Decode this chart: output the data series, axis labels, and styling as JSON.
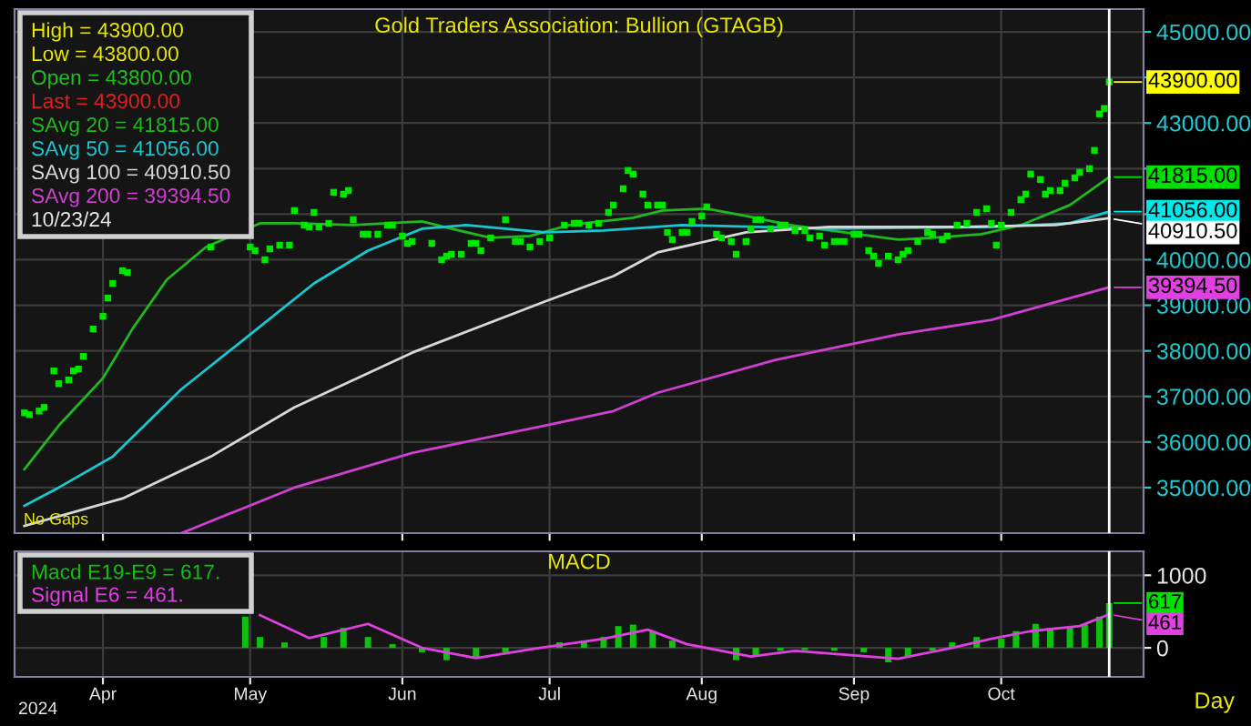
{
  "chart_data": [
    {
      "type": "scatter",
      "title": "Gold Traders Association: Bullion (GTAGB)",
      "legend": "top left",
      "grid": true,
      "tick_labels": "y",
      "xlim": [
        "2024-03-14",
        "2024-10-30"
      ],
      "ylim": [
        34000,
        45500
      ],
      "xticks": [
        {
          "value": "2024-04-01",
          "label": null
        },
        {
          "value": "2024-05-01",
          "label": null
        },
        {
          "value": "2024-06-01",
          "label": null
        },
        {
          "value": "2024-07-01",
          "label": null
        },
        {
          "value": "2024-08-01",
          "label": null
        },
        {
          "value": "2024-09-01",
          "label": null
        },
        {
          "value": "2024-10-01",
          "label": null
        }
      ],
      "yticks": [
        {
          "value": 35000,
          "label": "35000.00"
        },
        {
          "value": 36000,
          "label": "36000.00"
        },
        {
          "value": 37000,
          "label": "37000.00"
        },
        {
          "value": 38000,
          "label": "38000.00"
        },
        {
          "value": 39000,
          "label": "39000.00"
        },
        {
          "value": 40000,
          "label": "40000.00"
        },
        {
          "value": 41000,
          "label": null
        },
        {
          "value": 42000,
          "label": null
        },
        {
          "value": 43000,
          "label": "43000.00"
        },
        {
          "value": 44000,
          "label": null
        },
        {
          "value": 45000,
          "label": "45000.00"
        }
      ],
      "annotations": [
        "High = 43900.00",
        "Low = 43800.00",
        "Open = 43800.00",
        "Last = 43900.00",
        "10/23/24",
        "No Gaps",
        {
          "text": "43900.00",
          "x": "2024-10-23",
          "y": 43900
        },
        {
          "text": "41815.00",
          "x": "2024-10-23",
          "y": 41815
        },
        {
          "text": "41056.00",
          "x": "2024-10-23",
          "y": 41056
        },
        {
          "text": "40910.50",
          "x": "2024-10-23",
          "y": 40910.5
        },
        {
          "text": "39394.50",
          "x": "2024-10-23",
          "y": 39394.5
        }
      ],
      "ref_lines": [
        {
          "axis": "x",
          "value": "2024-10-23",
          "color": "#ffffff"
        }
      ],
      "series": [
        {
          "marker": "square",
          "color": "#00e400",
          "x": [
            "2024-03-16",
            "2024-03-17",
            "2024-03-19",
            "2024-03-20",
            "2024-03-22",
            "2024-03-23",
            "2024-03-25",
            "2024-03-26",
            "2024-03-27",
            "2024-03-28",
            "2024-03-30",
            "2024-04-01",
            "2024-04-02",
            "2024-04-03",
            "2024-04-05",
            "2024-04-06",
            "2024-04-23",
            "2024-04-24",
            "2024-05-01",
            "2024-05-02",
            "2024-05-04",
            "2024-05-05",
            "2024-05-07",
            "2024-05-09",
            "2024-05-10",
            "2024-05-12",
            "2024-05-13",
            "2024-05-14",
            "2024-05-15",
            "2024-05-17",
            "2024-05-18",
            "2024-05-20",
            "2024-05-21",
            "2024-05-22",
            "2024-05-24",
            "2024-05-25",
            "2024-05-27",
            "2024-05-29",
            "2024-05-30",
            "2024-06-01",
            "2024-06-02",
            "2024-06-03",
            "2024-06-07",
            "2024-06-09",
            "2024-06-10",
            "2024-06-11",
            "2024-06-13",
            "2024-06-15",
            "2024-06-16",
            "2024-06-17",
            "2024-06-19",
            "2024-06-22",
            "2024-06-24",
            "2024-06-25",
            "2024-06-27",
            "2024-06-29",
            "2024-07-01",
            "2024-07-04",
            "2024-07-06",
            "2024-07-07",
            "2024-07-09",
            "2024-07-11",
            "2024-07-13",
            "2024-07-14",
            "2024-07-16",
            "2024-07-17",
            "2024-07-18",
            "2024-07-20",
            "2024-07-21",
            "2024-07-23",
            "2024-07-24",
            "2024-07-25",
            "2024-07-26",
            "2024-07-28",
            "2024-07-29",
            "2024-07-30",
            "2024-08-01",
            "2024-08-02",
            "2024-08-04",
            "2024-08-05",
            "2024-08-07",
            "2024-08-08",
            "2024-08-10",
            "2024-08-11",
            "2024-08-12",
            "2024-08-13",
            "2024-08-15",
            "2024-08-17",
            "2024-08-18",
            "2024-08-20",
            "2024-08-22",
            "2024-08-23",
            "2024-08-25",
            "2024-08-26",
            "2024-08-28",
            "2024-08-29",
            "2024-08-30",
            "2024-09-01",
            "2024-09-02",
            "2024-09-04",
            "2024-09-05",
            "2024-09-06",
            "2024-09-08",
            "2024-09-10",
            "2024-09-11",
            "2024-09-12",
            "2024-09-14",
            "2024-09-16",
            "2024-09-17",
            "2024-09-19",
            "2024-09-20",
            "2024-09-22",
            "2024-09-24",
            "2024-09-26",
            "2024-09-28",
            "2024-09-29",
            "2024-09-30",
            "2024-10-01",
            "2024-10-03",
            "2024-10-05",
            "2024-10-06",
            "2024-10-07",
            "2024-10-09",
            "2024-10-10",
            "2024-10-11",
            "2024-10-13",
            "2024-10-14",
            "2024-10-16",
            "2024-10-17",
            "2024-10-19",
            "2024-10-20",
            "2024-10-21",
            "2024-10-22",
            "2024-10-23"
          ],
          "values": [
            36640,
            36600,
            36680,
            36760,
            37560,
            37280,
            37360,
            37560,
            37600,
            37880,
            38480,
            38760,
            39160,
            39480,
            39760,
            39720,
            40280,
            40520,
            40280,
            40200,
            40000,
            40240,
            40320,
            40320,
            41080,
            40760,
            40720,
            41040,
            40720,
            40800,
            41480,
            41440,
            41520,
            40880,
            40560,
            40560,
            40560,
            40760,
            40760,
            40520,
            40360,
            40400,
            40360,
            40000,
            40080,
            40120,
            40120,
            40360,
            40360,
            40200,
            40480,
            40880,
            40400,
            40400,
            40280,
            40400,
            40480,
            40760,
            40800,
            40800,
            40760,
            40800,
            41040,
            41200,
            41560,
            41960,
            41880,
            41440,
            41200,
            41200,
            41200,
            40600,
            40440,
            40600,
            40600,
            40840,
            40960,
            41160,
            40560,
            40480,
            40400,
            40120,
            40400,
            40680,
            40880,
            40880,
            40680,
            40760,
            40760,
            40640,
            40640,
            40480,
            40520,
            40320,
            40400,
            40400,
            40400,
            40560,
            40560,
            40200,
            40080,
            39920,
            40080,
            40000,
            40120,
            40200,
            40400,
            40600,
            40560,
            40440,
            40520,
            40760,
            40800,
            41040,
            41120,
            40800,
            40320,
            40760,
            41040,
            41320,
            41440,
            41880,
            41760,
            41440,
            41520,
            41520,
            41680,
            41800,
            41920,
            42000,
            42400,
            43200,
            43320,
            43900
          ]
        },
        {
          "type": "line",
          "name": "SAvg 20 = 41815.00",
          "color": "#1fb81f",
          "x": [
            "2024-03-16",
            "2024-03-23",
            "2024-04-01",
            "2024-04-07",
            "2024-04-14",
            "2024-04-22",
            "2024-05-03",
            "2024-05-10",
            "2024-05-22",
            "2024-06-05",
            "2024-06-11",
            "2024-06-19",
            "2024-06-27",
            "2024-07-05",
            "2024-07-18",
            "2024-07-24",
            "2024-08-02",
            "2024-08-10",
            "2024-08-19",
            "2024-08-30",
            "2024-09-10",
            "2024-09-17",
            "2024-09-27",
            "2024-10-05",
            "2024-10-15",
            "2024-10-23"
          ],
          "values": [
            35400,
            36360,
            37400,
            38480,
            39560,
            40280,
            40800,
            40800,
            40760,
            40840,
            40680,
            40480,
            40520,
            40760,
            40920,
            41080,
            41120,
            40960,
            40760,
            40600,
            40440,
            40480,
            40560,
            40760,
            41200,
            41815
          ]
        },
        {
          "type": "line",
          "name": "SAvg 50 = 41056.00",
          "color": "#18c8d0",
          "x": [
            "2024-03-16",
            "2024-03-23",
            "2024-04-03",
            "2024-04-17",
            "2024-05-01",
            "2024-05-14",
            "2024-05-25",
            "2024-06-05",
            "2024-06-14",
            "2024-06-30",
            "2024-07-12",
            "2024-07-28",
            "2024-08-27",
            "2024-09-29",
            "2024-10-15",
            "2024-10-23"
          ],
          "values": [
            34600,
            35000,
            35680,
            37160,
            38360,
            39480,
            40200,
            40680,
            40760,
            40600,
            40640,
            40760,
            40680,
            40720,
            40800,
            41056
          ]
        },
        {
          "type": "line",
          "name": "SAvg 100 = 40910.50",
          "color": "#d8d8d8",
          "x": [
            "2024-03-16",
            "2024-04-05",
            "2024-04-23",
            "2024-05-10",
            "2024-06-03",
            "2024-06-30",
            "2024-07-14",
            "2024-07-23",
            "2024-08-10",
            "2024-08-27",
            "2024-09-23",
            "2024-10-12",
            "2024-10-23"
          ],
          "values": [
            34160,
            34760,
            35680,
            36760,
            37960,
            39080,
            39640,
            40160,
            40600,
            40720,
            40720,
            40760,
            40910.5
          ]
        },
        {
          "type": "line",
          "name": "SAvg 200 = 39394.50",
          "color": "#d040d0",
          "x": [
            "2024-04-17",
            "2024-05-10",
            "2024-06-03",
            "2024-06-30",
            "2024-07-14",
            "2024-07-23",
            "2024-08-16",
            "2024-09-10",
            "2024-09-29",
            "2024-10-23"
          ],
          "values": [
            34000,
            35000,
            35760,
            36360,
            36680,
            37080,
            37800,
            38360,
            38680,
            39394.5
          ]
        }
      ]
    },
    {
      "type": "bar",
      "title": "MACD",
      "legend": "top left",
      "grid": true,
      "xlim": [
        "2024-03-14",
        "2024-10-30"
      ],
      "ylim": [
        -400,
        1330
      ],
      "xticks": [
        {
          "value": "2024-04-01",
          "label": "Apr"
        },
        {
          "value": "2024-05-01",
          "label": "May"
        },
        {
          "value": "2024-06-01",
          "label": "Jun"
        },
        {
          "value": "2024-07-01",
          "label": "Jul"
        },
        {
          "value": "2024-08-01",
          "label": "Aug"
        },
        {
          "value": "2024-09-01",
          "label": "Sep"
        },
        {
          "value": "2024-10-01",
          "label": "Oct"
        }
      ],
      "yticks": [
        0,
        1000
      ],
      "annotations": [
        "2024",
        "Day",
        {
          "text": "617",
          "x": "2024-10-23",
          "y": 617
        },
        {
          "text": "461",
          "x": "2024-10-23",
          "y": 461
        }
      ],
      "ref_lines": [
        {
          "axis": "x",
          "value": "2024-10-23",
          "color": "#ffffff"
        }
      ],
      "series": [
        {
          "name": "Macd E19-E9 = 617.",
          "color": "#10c010",
          "x": [
            "2024-04-30",
            "2024-05-03",
            "2024-05-08",
            "2024-05-16",
            "2024-05-20",
            "2024-05-25",
            "2024-05-30",
            "2024-06-05",
            "2024-06-10",
            "2024-06-16",
            "2024-06-22",
            "2024-06-28",
            "2024-07-03",
            "2024-07-08",
            "2024-07-12",
            "2024-07-15",
            "2024-07-18",
            "2024-07-22",
            "2024-07-26",
            "2024-07-30",
            "2024-08-04",
            "2024-08-08",
            "2024-08-12",
            "2024-08-17",
            "2024-08-22",
            "2024-08-28",
            "2024-09-03",
            "2024-09-08",
            "2024-09-12",
            "2024-09-17",
            "2024-09-21",
            "2024-09-26",
            "2024-10-01",
            "2024-10-04",
            "2024-10-08",
            "2024-10-11",
            "2024-10-15",
            "2024-10-18",
            "2024-10-21",
            "2024-10-23"
          ],
          "values": [
            430,
            150,
            75,
            150,
            275,
            150,
            50,
            -60,
            -170,
            -140,
            -60,
            0,
            75,
            100,
            150,
            300,
            320,
            230,
            100,
            0,
            null,
            -170,
            -120,
            -40,
            -30,
            -40,
            -60,
            -200,
            -120,
            -40,
            75,
            150,
            125,
            230,
            330,
            275,
            275,
            330,
            430,
            617
          ]
        },
        {
          "type": "line",
          "name": "Signal E6 = 461.",
          "color": "#e040e0",
          "x": [
            "2024-05-03",
            "2024-05-13",
            "2024-05-25",
            "2024-06-05",
            "2024-06-16",
            "2024-06-29",
            "2024-07-12",
            "2024-07-21",
            "2024-07-29",
            "2024-08-11",
            "2024-08-20",
            "2024-09-10",
            "2024-09-21",
            "2024-09-29",
            "2024-10-07",
            "2024-10-17",
            "2024-10-23"
          ],
          "values": [
            450,
            135,
            330,
            0,
            -140,
            0,
            125,
            250,
            50,
            -120,
            -40,
            -150,
            0,
            125,
            230,
            300,
            461
          ]
        }
      ]
    }
  ]
}
